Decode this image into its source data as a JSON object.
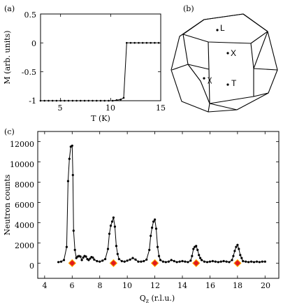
{
  "chart_data": [
    {
      "panel": "(a)",
      "type": "line",
      "xlabel": "T (K)",
      "ylabel": "M (arb. units)",
      "xlim": [
        3,
        15
      ],
      "ylim": [
        -1,
        0.5
      ],
      "xticks": [
        "5",
        "10",
        "15"
      ],
      "yticks": [
        "-1",
        "-0.5",
        "0",
        "0.5"
      ],
      "series": [
        {
          "x": [
            3.0,
            3.4,
            3.8,
            4.2,
            4.6,
            5.0,
            5.4,
            5.8,
            6.2,
            6.6,
            7.0,
            7.4,
            7.8,
            8.2,
            8.6,
            9.0,
            9.4,
            9.8,
            10.2,
            10.6,
            11.0,
            11.3,
            11.6,
            12.0,
            12.4,
            12.8,
            13.2,
            13.6,
            14.0,
            14.4,
            14.8
          ],
          "y": [
            -1,
            -1,
            -1,
            -1,
            -1,
            -1,
            -1,
            -1,
            -1,
            -1,
            -1,
            -1,
            -1,
            -1,
            -1,
            -1,
            -1,
            -1,
            -1,
            -0.99,
            -0.98,
            -0.95,
            0,
            0,
            0,
            0,
            0,
            0,
            0,
            0,
            0
          ]
        }
      ]
    },
    {
      "panel": "(b)",
      "type": "diagram",
      "points": [
        "L",
        "X",
        "T",
        "χ"
      ]
    },
    {
      "panel": "(c)",
      "type": "line",
      "xlabel": "Q_z (r.l.u.)",
      "ylabel": "Neutron counts",
      "xlim": [
        3.5,
        21
      ],
      "ylim": [
        -1500,
        13000
      ],
      "xticks": [
        "4",
        "6",
        "8",
        "10",
        "12",
        "14",
        "16",
        "18",
        "20"
      ],
      "yticks": [
        "0",
        "2000",
        "4000",
        "6000",
        "8000",
        "10000",
        "12000"
      ],
      "series": [
        {
          "x": [
            5.0,
            5.2,
            5.4,
            5.6,
            5.7,
            5.8,
            5.9,
            6.0,
            6.05,
            6.1,
            6.2,
            6.3,
            6.4,
            6.5,
            6.6,
            6.7,
            6.8,
            6.9,
            7.0,
            7.1,
            7.2,
            7.3,
            7.4,
            7.5,
            7.6,
            7.8,
            8.0,
            8.2,
            8.4,
            8.6,
            8.7,
            8.8,
            8.9,
            9.0,
            9.1,
            9.2,
            9.3,
            9.4,
            9.6,
            9.8,
            10.0,
            10.2,
            10.4,
            10.6,
            10.8,
            11.0,
            11.2,
            11.4,
            11.6,
            11.7,
            11.8,
            11.9,
            12.0,
            12.1,
            12.2,
            12.3,
            12.4,
            12.6,
            12.8,
            13.0,
            13.2,
            13.4,
            13.6,
            13.8,
            14.0,
            14.2,
            14.4,
            14.6,
            14.7,
            14.8,
            14.9,
            15.0,
            15.1,
            15.2,
            15.3,
            15.4,
            15.6,
            15.8,
            16.0,
            16.2,
            16.4,
            16.6,
            16.8,
            17.0,
            17.2,
            17.4,
            17.6,
            17.7,
            17.8,
            17.9,
            18.0,
            18.1,
            18.2,
            18.3,
            18.4,
            18.6,
            18.8,
            19.0,
            19.2,
            19.4,
            19.6,
            19.8,
            20.0
          ],
          "y": [
            100,
            150,
            300,
            1600,
            8100,
            10300,
            11500,
            11600,
            8700,
            3200,
            1300,
            500,
            650,
            700,
            650,
            300,
            550,
            700,
            650,
            400,
            300,
            450,
            600,
            550,
            350,
            200,
            150,
            250,
            400,
            1400,
            2900,
            3700,
            4100,
            4500,
            3600,
            1700,
            900,
            400,
            200,
            150,
            250,
            350,
            500,
            350,
            150,
            150,
            200,
            350,
            1300,
            2700,
            3500,
            4100,
            4300,
            3400,
            1600,
            700,
            300,
            150,
            100,
            150,
            300,
            200,
            100,
            150,
            200,
            150,
            100,
            250,
            700,
            1400,
            1600,
            1700,
            1300,
            800,
            500,
            300,
            150,
            100,
            150,
            200,
            150,
            100,
            150,
            200,
            150,
            100,
            300,
            700,
            1200,
            1600,
            1800,
            1400,
            800,
            500,
            200,
            150,
            100,
            150,
            100,
            150,
            100,
            150,
            150
          ]
        }
      ],
      "markers": {
        "shape": "diamond",
        "color": "#e31a1c",
        "edge_color": "#ffb000",
        "x": [
          6,
          9,
          12,
          15,
          18
        ],
        "y": [
          0,
          0,
          0,
          0,
          0
        ]
      }
    }
  ]
}
